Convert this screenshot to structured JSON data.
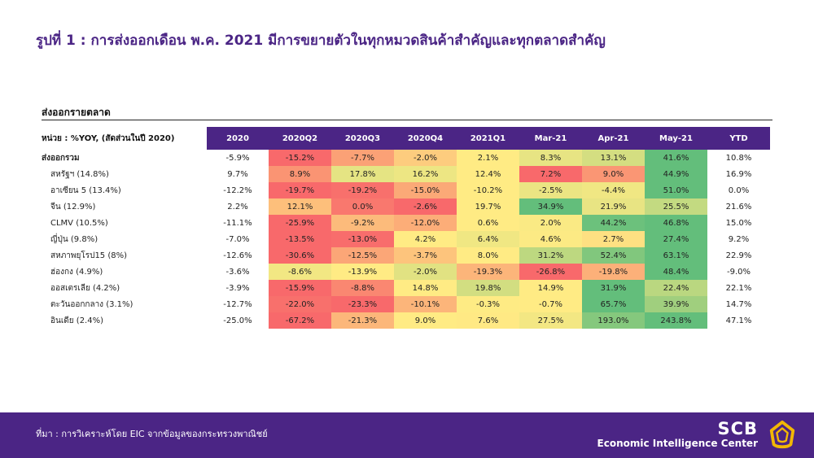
{
  "title": "รูปที่ 1 : การส่งออกเดือน พ.ค. 2021 มีการขยายตัวในทุกหมวดสินค้าสำคัญและทุกตลาดสำคัญ",
  "section_label": "ส่งออกรายตลาด",
  "source_text": "ที่มา : การวิเคราะห์โดย EIC จากข้อมูลของกระทรวงพาณิชย์",
  "brand": {
    "name": "SCB",
    "subtitle": "Economic Intelligence Center"
  },
  "colors": {
    "header_bg": "#4b2585",
    "footer_bg": "#4b2585",
    "low": "#f8696b",
    "mid": "#ffeb84",
    "high": "#63be7b"
  },
  "chart_data": {
    "type": "heatmap",
    "unit_label": "หน่วย : %YOY, (สัดส่วนในปี 2020)",
    "columns": [
      "2020",
      "2020Q2",
      "2020Q3",
      "2020Q4",
      "2021Q1",
      "Mar-21",
      "Apr-21",
      "May-21",
      "YTD"
    ],
    "colored_columns": [
      "2020Q2",
      "2020Q3",
      "2020Q4",
      "2021Q1",
      "Mar-21",
      "Apr-21",
      "May-21"
    ],
    "rows": [
      {
        "label": "ส่งออกรวม",
        "values": [
          -5.9,
          -15.2,
          -7.7,
          -2.0,
          2.1,
          8.3,
          13.1,
          41.6,
          10.8
        ]
      },
      {
        "label": "สหรัฐฯ (14.8%)",
        "values": [
          9.7,
          8.9,
          17.8,
          16.2,
          12.4,
          7.2,
          9.0,
          44.9,
          16.9
        ]
      },
      {
        "label": "อาเซียน 5 (13.4%)",
        "values": [
          -12.2,
          -19.7,
          -19.2,
          -15.0,
          -10.2,
          -2.5,
          -4.4,
          51.0,
          0.0
        ]
      },
      {
        "label": "จีน (12.9%)",
        "values": [
          2.2,
          12.1,
          0.0,
          -2.6,
          19.7,
          34.9,
          21.9,
          25.5,
          21.6
        ]
      },
      {
        "label": "CLMV (10.5%)",
        "values": [
          -11.1,
          -25.9,
          -9.2,
          -12.0,
          0.6,
          2.0,
          44.2,
          46.8,
          15.0
        ]
      },
      {
        "label": "ญี่ปุ่น (9.8%)",
        "values": [
          -7.0,
          -13.5,
          -13.0,
          4.2,
          6.4,
          4.6,
          2.7,
          27.4,
          9.2
        ]
      },
      {
        "label": "สหภาพยุโรป15 (8%)",
        "values": [
          -12.6,
          -30.6,
          -12.5,
          -3.7,
          8.0,
          31.2,
          52.4,
          63.1,
          22.9
        ]
      },
      {
        "label": "ฮ่องกง (4.9%)",
        "values": [
          -3.6,
          -8.6,
          -13.9,
          -2.0,
          -19.3,
          -26.8,
          -19.8,
          48.4,
          -9.0
        ]
      },
      {
        "label": "ออสเตรเลีย (4.2%)",
        "values": [
          -3.9,
          -15.9,
          -8.8,
          14.8,
          19.8,
          14.9,
          31.9,
          22.4,
          22.1
        ]
      },
      {
        "label": "ตะวันออกกลาง (3.1%)",
        "values": [
          -12.7,
          -22.0,
          -23.3,
          -10.1,
          -0.3,
          -0.7,
          65.7,
          39.9,
          14.7
        ]
      },
      {
        "label": "อินเดีย (2.4%)",
        "values": [
          -25.0,
          -67.2,
          -21.3,
          9.0,
          7.6,
          27.5,
          193.0,
          243.8,
          47.1
        ]
      }
    ]
  }
}
